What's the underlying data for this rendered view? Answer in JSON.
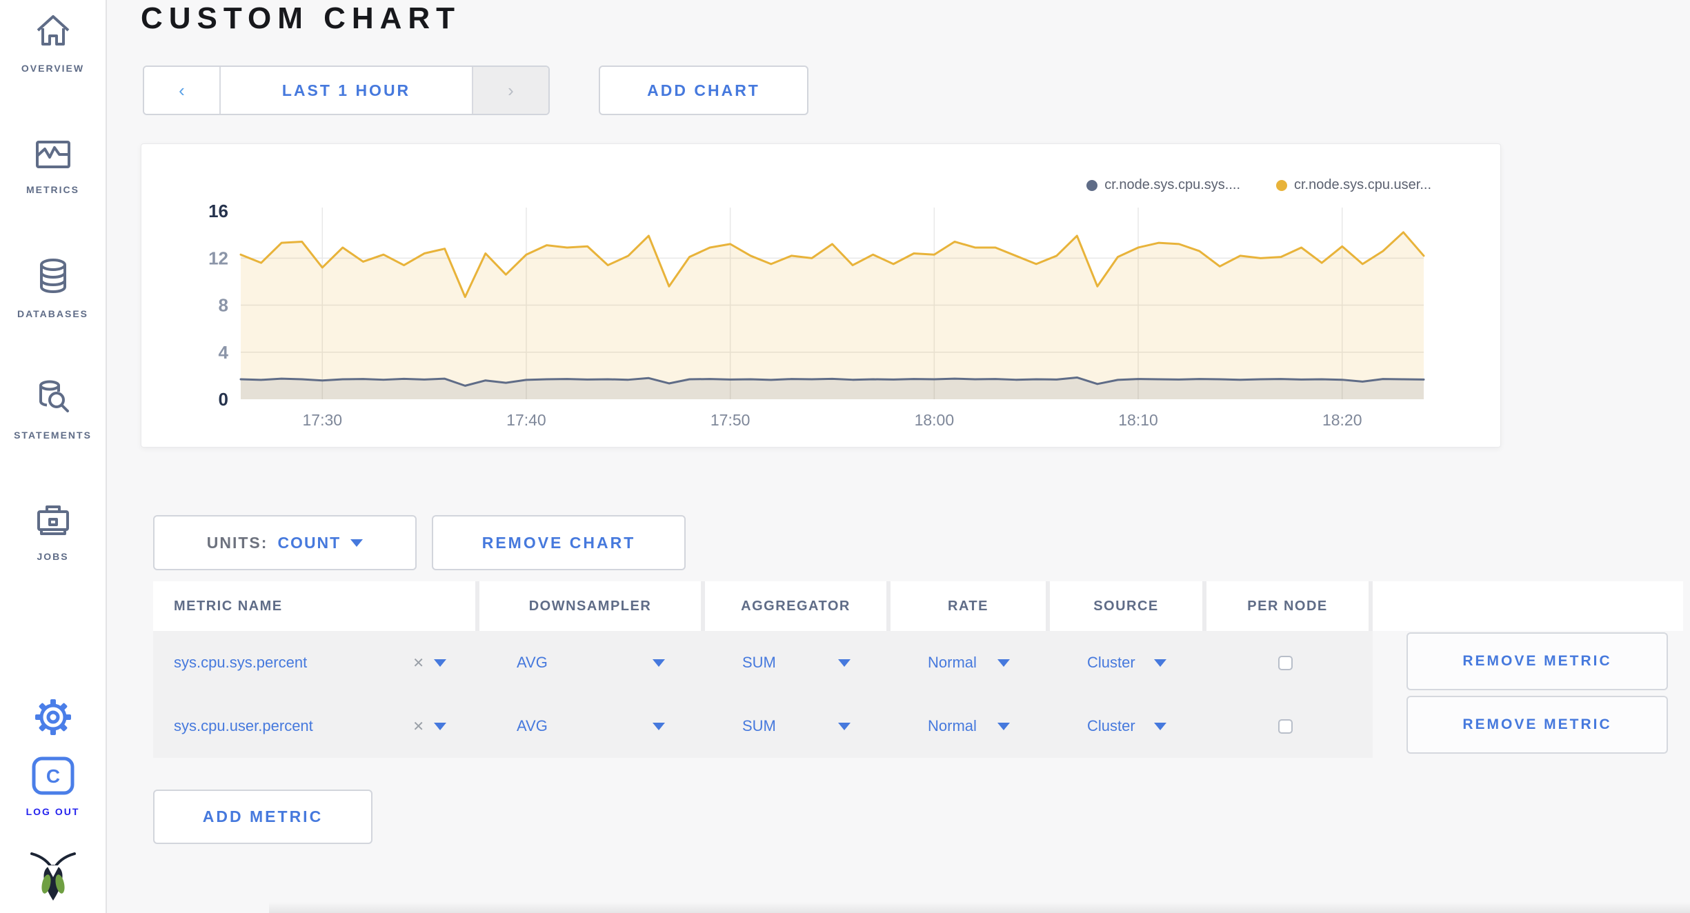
{
  "header": {
    "title": "CUSTOM CHART"
  },
  "sidebar": {
    "items": [
      {
        "label": "OVERVIEW",
        "icon": "home-icon"
      },
      {
        "label": "METRICS",
        "icon": "metrics-icon"
      },
      {
        "label": "DATABASES",
        "icon": "database-icon"
      },
      {
        "label": "STATEMENTS",
        "icon": "statements-icon"
      },
      {
        "label": "JOBS",
        "icon": "briefcase-icon"
      }
    ],
    "logout_label": "LOG OUT"
  },
  "controls": {
    "prev_glyph": "‹",
    "next_glyph": "›",
    "time_range_label": "LAST 1 HOUR",
    "add_chart_label": "ADD CHART"
  },
  "chart_data": {
    "type": "line",
    "title": "",
    "xlabel": "",
    "ylabel": "",
    "grid": true,
    "legend_position": "top-right",
    "ylim": [
      0,
      16.3
    ],
    "y_ticks": [
      0,
      4,
      8,
      12,
      16
    ],
    "y_gridlines": [
      4,
      8,
      12
    ],
    "x_tick_labels": [
      "17:30",
      "17:40",
      "17:50",
      "18:00",
      "18:10",
      "18:20"
    ],
    "x_tick_indices": [
      4,
      14,
      24,
      34,
      44,
      54
    ],
    "axis_color_strong": "#26334d",
    "axis_color_weak": "#8b95a8",
    "gridline_color": "#e8e8e8",
    "x_label_color": "#7e8799",
    "series": [
      {
        "name": "cr.node.sys.cpu.sys....",
        "color": "#5f6c87",
        "fill": "rgba(95,108,135,0.14)",
        "values": [
          1.7,
          1.65,
          1.75,
          1.7,
          1.6,
          1.7,
          1.72,
          1.66,
          1.74,
          1.68,
          1.75,
          1.15,
          1.6,
          1.4,
          1.65,
          1.7,
          1.72,
          1.68,
          1.7,
          1.66,
          1.8,
          1.35,
          1.7,
          1.72,
          1.68,
          1.7,
          1.65,
          1.72,
          1.7,
          1.74,
          1.66,
          1.7,
          1.68,
          1.72,
          1.7,
          1.75,
          1.7,
          1.72,
          1.66,
          1.7,
          1.68,
          1.85,
          1.3,
          1.65,
          1.72,
          1.7,
          1.68,
          1.72,
          1.7,
          1.66,
          1.7,
          1.72,
          1.68,
          1.7,
          1.66,
          1.5,
          1.72,
          1.7,
          1.68
        ]
      },
      {
        "name": "cr.node.sys.cpu.user...",
        "color": "#e8b33a",
        "fill": "rgba(232,179,58,0.14)",
        "values": [
          12.3,
          11.6,
          13.3,
          13.4,
          11.2,
          12.9,
          11.7,
          12.3,
          11.4,
          12.4,
          12.8,
          8.7,
          12.4,
          10.6,
          12.3,
          13.1,
          12.9,
          13.0,
          11.4,
          12.2,
          13.9,
          9.6,
          12.1,
          12.9,
          13.2,
          12.2,
          11.5,
          12.2,
          12.0,
          13.2,
          11.4,
          12.3,
          11.5,
          12.4,
          12.3,
          13.4,
          12.9,
          12.9,
          12.2,
          11.5,
          12.2,
          13.9,
          9.6,
          12.1,
          12.9,
          13.3,
          13.2,
          12.6,
          11.3,
          12.2,
          12.0,
          12.1,
          12.9,
          11.6,
          13.0,
          11.5,
          12.6,
          14.2,
          12.2
        ]
      }
    ]
  },
  "units": {
    "label": "UNITS:",
    "value": "COUNT"
  },
  "remove_chart_label": "REMOVE CHART",
  "table": {
    "headers": [
      "METRIC NAME",
      "DOWNSAMPLER",
      "AGGREGATOR",
      "RATE",
      "SOURCE",
      "PER NODE",
      ""
    ],
    "rows": [
      {
        "metric_name": "sys.cpu.sys.percent",
        "downsampler": "AVG",
        "aggregator": "SUM",
        "rate": "Normal",
        "source": "Cluster",
        "per_node_checked": false,
        "action": "REMOVE METRIC"
      },
      {
        "metric_name": "sys.cpu.user.percent",
        "downsampler": "AVG",
        "aggregator": "SUM",
        "rate": "Normal",
        "source": "Cluster",
        "per_node_checked": false,
        "action": "REMOVE METRIC"
      }
    ]
  },
  "add_metric_label": "ADD METRIC",
  "icons": {
    "clear_glyph": "✕"
  },
  "colors": {
    "accent_blue": "#4679dd",
    "sidebar_gray": "#5f6c87",
    "series_sys": "#5f6c87",
    "series_user": "#e8b33a"
  }
}
